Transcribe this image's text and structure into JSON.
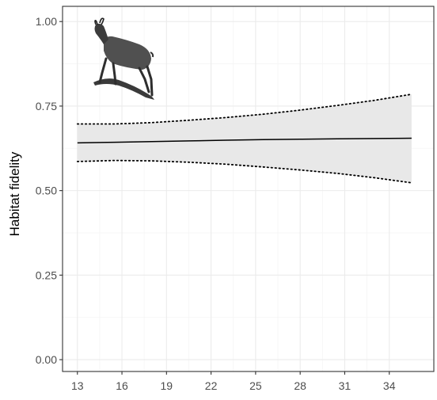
{
  "chart_data": {
    "type": "line",
    "title": "",
    "xlabel": "",
    "ylabel": "Habitat fidelity",
    "xlim": [
      12.0,
      37.0
    ],
    "ylim": [
      -0.035,
      1.045
    ],
    "x_ticks": [
      13,
      16,
      19,
      22,
      25,
      28,
      31,
      34
    ],
    "x_tick_labels": [
      "13",
      "16",
      "19",
      "22",
      "25",
      "28",
      "31",
      "34"
    ],
    "y_ticks": [
      0,
      0.25,
      0.5,
      0.75,
      1.0
    ],
    "y_tick_labels": [
      "0.00",
      "0.25",
      "0.50",
      "0.75",
      "1.00"
    ],
    "grid": true,
    "series": [
      {
        "role": "fit",
        "style": "solid",
        "color": "#000000",
        "x": [
          13.0,
          15.5,
          18.0,
          20.5,
          23.0,
          25.5,
          28.0,
          30.5,
          33.0,
          35.5
        ],
        "y": [
          0.641,
          0.643,
          0.645,
          0.647,
          0.649,
          0.651,
          0.652,
          0.653,
          0.654,
          0.655
        ]
      },
      {
        "role": "upper-bound",
        "style": "dotted",
        "color": "#000000",
        "x": [
          13.0,
          15.5,
          18.0,
          20.5,
          23.0,
          25.5,
          28.0,
          30.5,
          33.0,
          35.5
        ],
        "y": [
          0.697,
          0.697,
          0.701,
          0.708,
          0.716,
          0.726,
          0.738,
          0.752,
          0.767,
          0.785
        ]
      },
      {
        "role": "lower-bound",
        "style": "dotted",
        "color": "#000000",
        "x": [
          13.0,
          15.5,
          18.0,
          20.5,
          23.0,
          25.5,
          28.0,
          30.5,
          33.0,
          35.5
        ],
        "y": [
          0.586,
          0.589,
          0.588,
          0.584,
          0.578,
          0.57,
          0.561,
          0.551,
          0.538,
          0.523
        ]
      }
    ],
    "band_color": "#e8e8e8",
    "panel_border_color": "#333333",
    "grid_major_color": "#ebebeb",
    "grid_minor_color": "#f5f5f5",
    "inset_icon": "chamois-illustration"
  }
}
